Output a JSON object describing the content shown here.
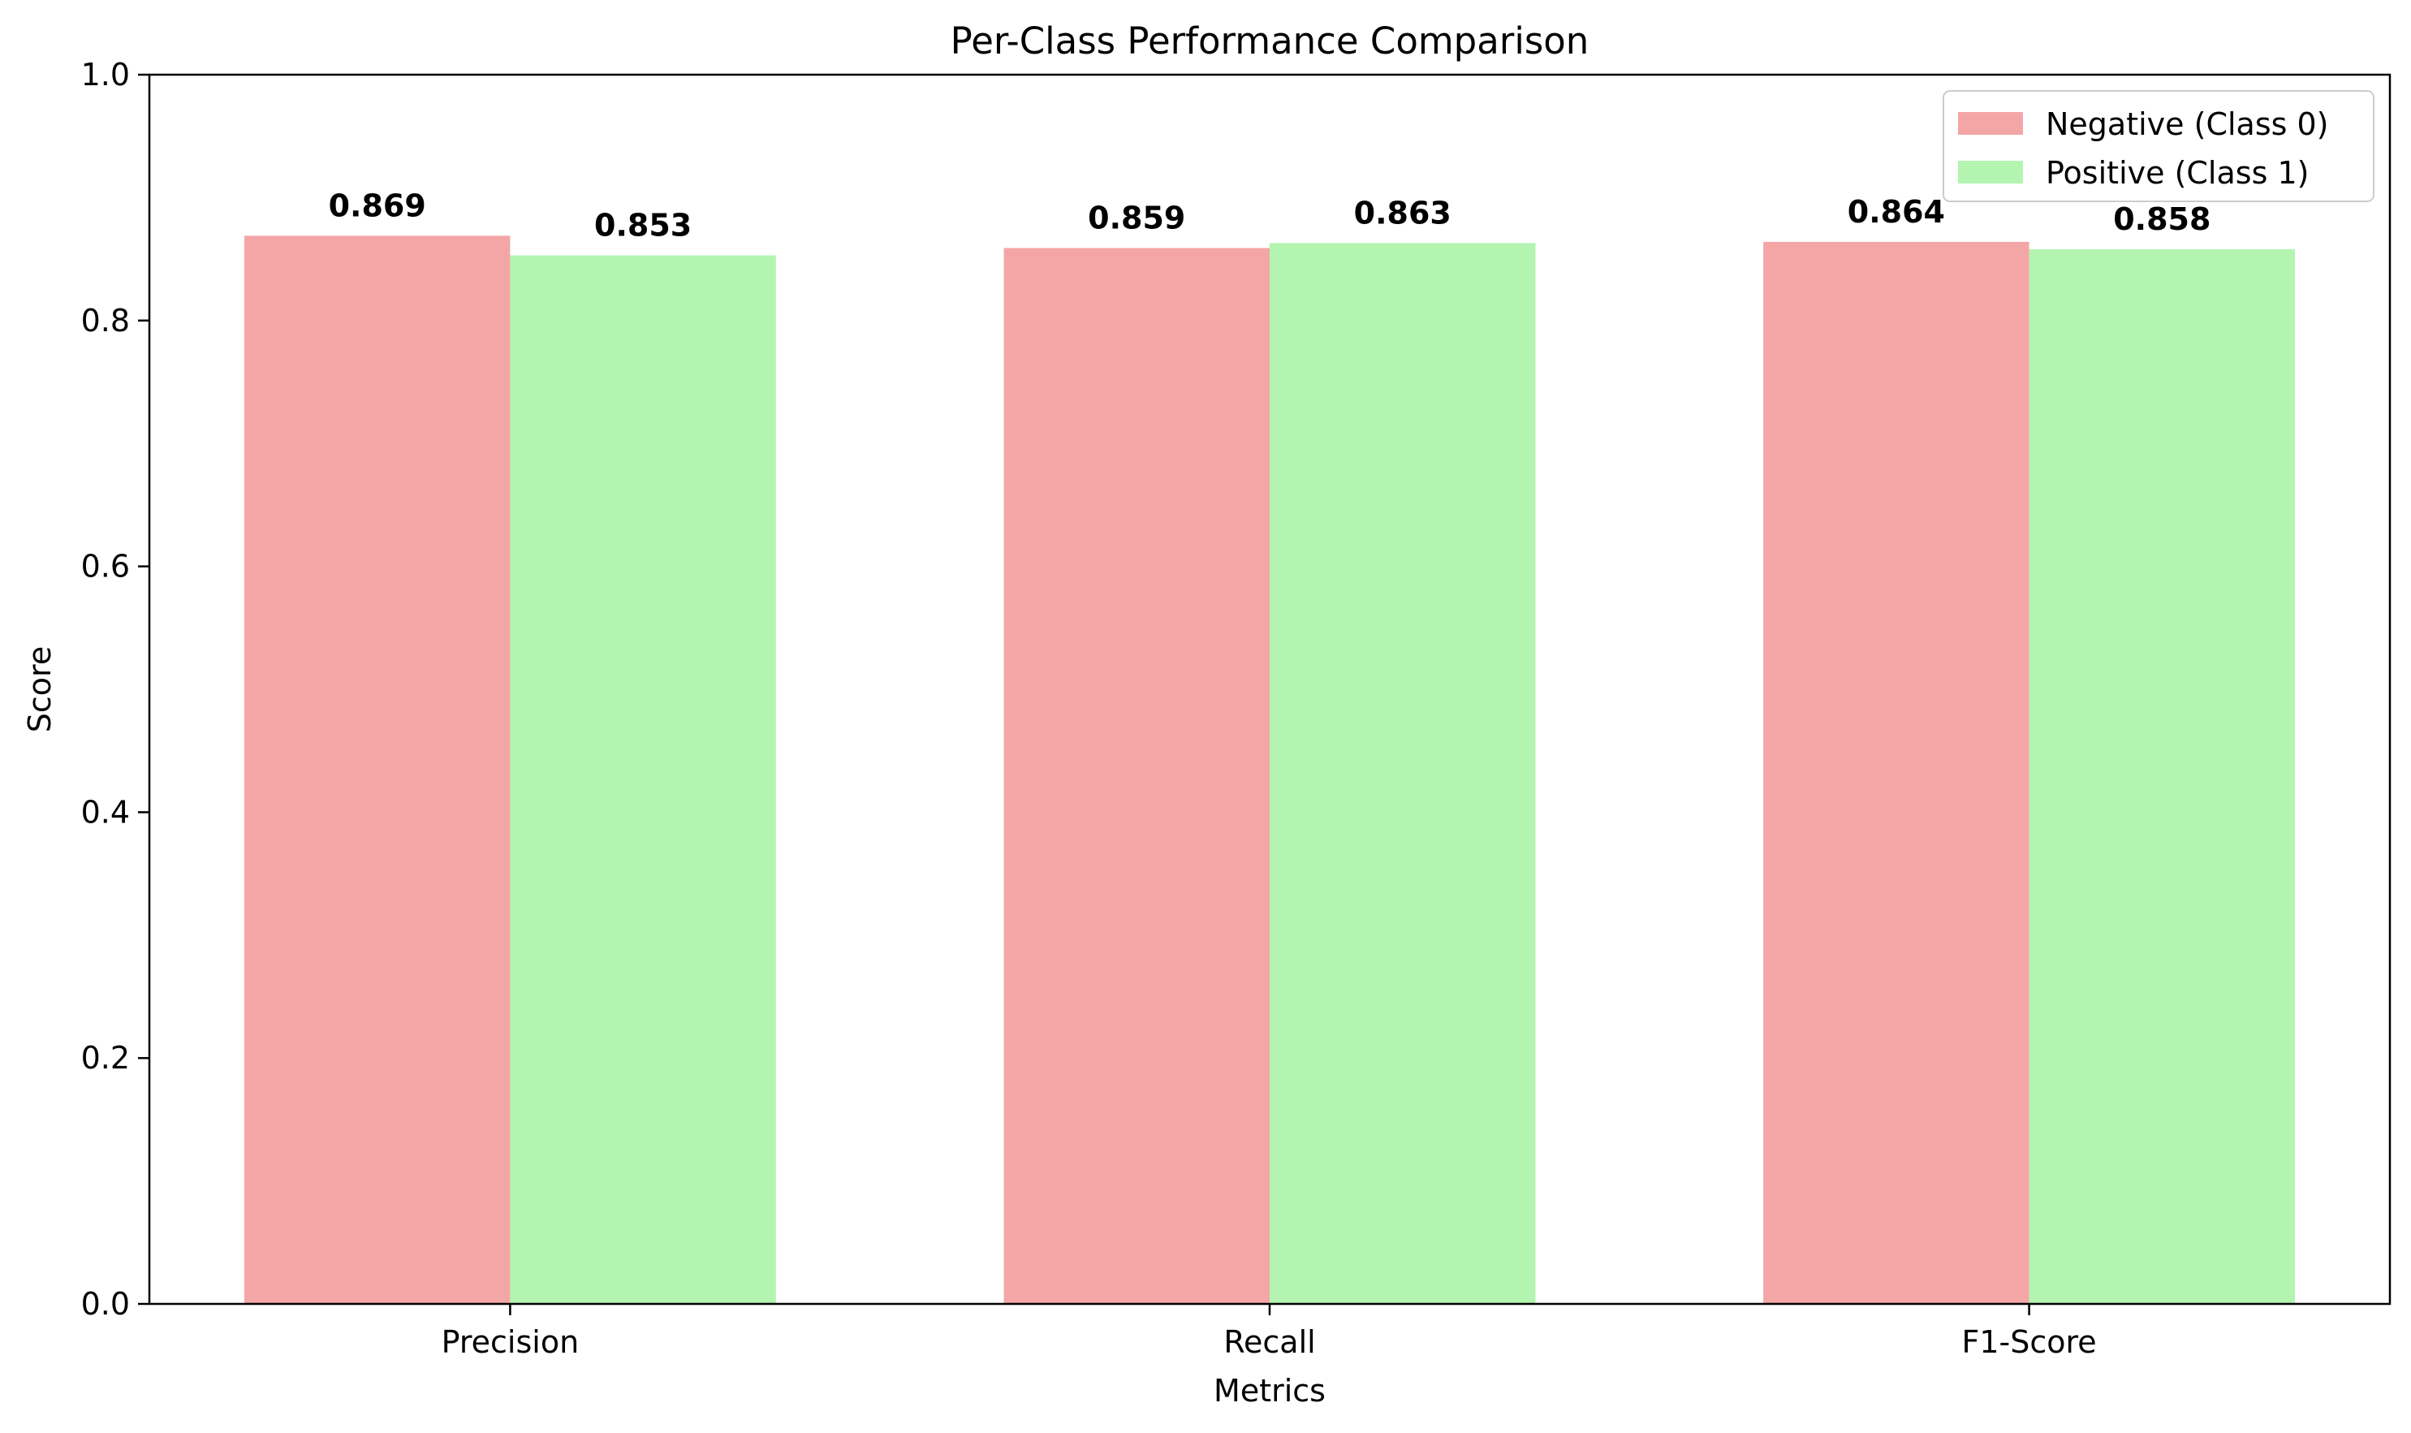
{
  "chart_data": {
    "type": "bar",
    "title": "Per-Class Performance Comparison",
    "xlabel": "Metrics",
    "ylabel": "Score",
    "categories": [
      "Precision",
      "Recall",
      "F1-Score"
    ],
    "series": [
      {
        "name": "Negative (Class 0)",
        "values": [
          0.869,
          0.859,
          0.864
        ],
        "labels": [
          "0.869",
          "0.859",
          "0.864"
        ],
        "color": "#f4a6a6"
      },
      {
        "name": "Positive (Class 1)",
        "values": [
          0.853,
          0.863,
          0.858
        ],
        "labels": [
          "0.853",
          "0.863",
          "0.858"
        ],
        "color": "#b2f4b0"
      }
    ],
    "ylim": [
      0,
      1.0
    ],
    "yticks": [
      0.0,
      0.2,
      0.4,
      0.6,
      0.8,
      1.0
    ],
    "ytick_labels": [
      "0.0",
      "0.2",
      "0.4",
      "0.6",
      "0.8",
      "1.0"
    ],
    "grid": false,
    "legend_position": "top-right"
  }
}
